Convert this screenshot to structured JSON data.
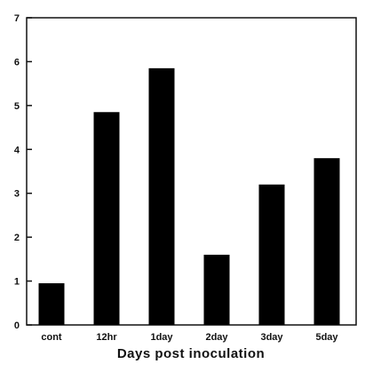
{
  "chart_data": {
    "type": "bar",
    "title": "",
    "xlabel": "Days post inoculation",
    "ylabel": "",
    "categories": [
      "cont",
      "12hr",
      "1day",
      "2day",
      "3day",
      "5day"
    ],
    "values": [
      0.95,
      4.85,
      5.85,
      1.6,
      3.2,
      3.8
    ],
    "ylim": [
      0,
      7
    ],
    "yticks": [
      0,
      1,
      2,
      3,
      4,
      5,
      6,
      7
    ],
    "grid": false,
    "bar_color": "#000000"
  }
}
